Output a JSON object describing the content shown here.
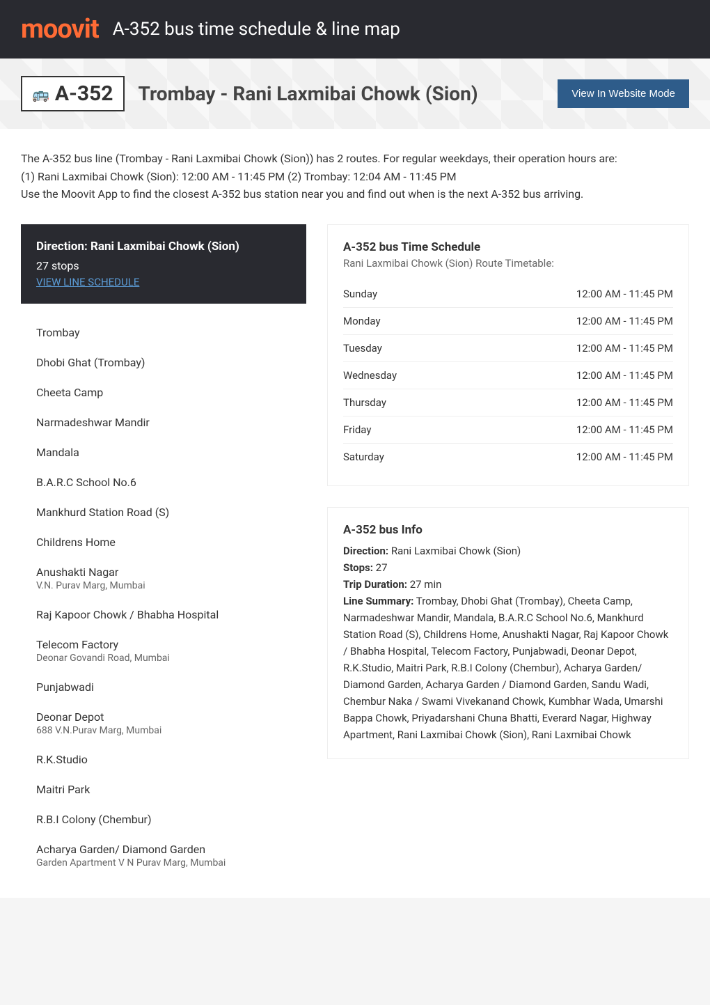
{
  "header": {
    "logo_text": "moovit",
    "title": "A-352 bus time schedule & line map"
  },
  "title_section": {
    "line_code": "A-352",
    "route_name": "Trombay - Rani Laxmibai Chowk (Sion)",
    "website_btn": "View In Website Mode"
  },
  "description": {
    "line1": "The A-352 bus line (Trombay - Rani Laxmibai Chowk (Sion)) has 2 routes. For regular weekdays, their operation hours are:",
    "line2": "(1) Rani Laxmibai Chowk (Sion): 12:00 AM - 11:45 PM (2) Trombay: 12:04 AM - 11:45 PM",
    "line3": "Use the Moovit App to find the closest A-352 bus station near you and find out when is the next A-352 bus arriving."
  },
  "direction_box": {
    "title": "Direction: Rani Laxmibai Chowk (Sion)",
    "stops": "27 stops",
    "link": "VIEW LINE SCHEDULE"
  },
  "stops": [
    {
      "name": "Trombay",
      "address": ""
    },
    {
      "name": "Dhobi Ghat (Trombay)",
      "address": ""
    },
    {
      "name": "Cheeta Camp",
      "address": ""
    },
    {
      "name": "Narmadeshwar Mandir",
      "address": ""
    },
    {
      "name": "Mandala",
      "address": ""
    },
    {
      "name": "B.A.R.C School No.6",
      "address": ""
    },
    {
      "name": "Mankhurd Station Road (S)",
      "address": ""
    },
    {
      "name": "Childrens Home",
      "address": ""
    },
    {
      "name": "Anushakti Nagar",
      "address": "V.N. Purav Marg, Mumbai"
    },
    {
      "name": "Raj Kapoor Chowk / Bhabha Hospital",
      "address": ""
    },
    {
      "name": "Telecom Factory",
      "address": "Deonar Govandi Road, Mumbai"
    },
    {
      "name": "Punjabwadi",
      "address": ""
    },
    {
      "name": "Deonar Depot",
      "address": "688 V.N.Purav Marg, Mumbai"
    },
    {
      "name": "R.K.Studio",
      "address": ""
    },
    {
      "name": "Maitri Park",
      "address": ""
    },
    {
      "name": "R.B.I Colony (Chembur)",
      "address": ""
    },
    {
      "name": "Acharya Garden/ Diamond Garden",
      "address": "Garden Apartment V N Purav Marg, Mumbai"
    }
  ],
  "schedule": {
    "title": "A-352 bus Time Schedule",
    "subtitle": "Rani Laxmibai Chowk (Sion) Route Timetable:",
    "rows": [
      {
        "day": "Sunday",
        "time": "12:00 AM - 11:45 PM"
      },
      {
        "day": "Monday",
        "time": "12:00 AM - 11:45 PM"
      },
      {
        "day": "Tuesday",
        "time": "12:00 AM - 11:45 PM"
      },
      {
        "day": "Wednesday",
        "time": "12:00 AM - 11:45 PM"
      },
      {
        "day": "Thursday",
        "time": "12:00 AM - 11:45 PM"
      },
      {
        "day": "Friday",
        "time": "12:00 AM - 11:45 PM"
      },
      {
        "day": "Saturday",
        "time": "12:00 AM - 11:45 PM"
      }
    ]
  },
  "info": {
    "title": "A-352 bus Info",
    "direction_label": "Direction:",
    "direction_value": " Rani Laxmibai Chowk (Sion)",
    "stops_label": "Stops:",
    "stops_value": " 27",
    "duration_label": "Trip Duration:",
    "duration_value": " 27 min",
    "summary_label": "Line Summary:",
    "summary_value": " Trombay, Dhobi Ghat (Trombay), Cheeta Camp, Narmadeshwar Mandir, Mandala, B.A.R.C School No.6, Mankhurd Station Road (S), Childrens Home, Anushakti Nagar, Raj Kapoor Chowk / Bhabha Hospital, Telecom Factory, Punjabwadi, Deonar Depot, R.K.Studio, Maitri Park, R.B.I Colony (Chembur), Acharya Garden/ Diamond Garden, Acharya Garden / Diamond Garden, Sandu Wadi, Chembur Naka / Swami Vivekanand Chowk, Kumbhar Wada, Umarshi Bappa Chowk, Priyadarshani Chuna Bhatti, Everard Nagar, Highway Apartment, Rani Laxmibai Chowk (Sion), Rani Laxmibai Chowk"
  },
  "colors": {
    "header_bg": "#292a30",
    "logo_color": "#ff6b35",
    "btn_bg": "#2e5c8a",
    "link_color": "#5b9bd5"
  }
}
